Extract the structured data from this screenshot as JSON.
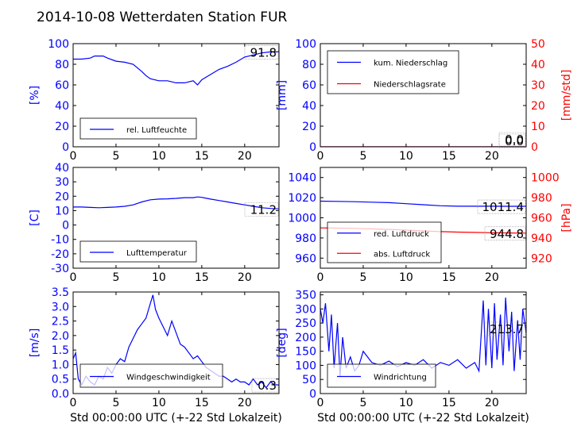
{
  "title": "2014-10-08 Wetterdaten Station FUR",
  "colors": {
    "primary": "#0000ff",
    "secondary": "#ff0000",
    "axis": "#000000"
  },
  "chart_data": [
    {
      "type": "line",
      "ylabel": "[%]",
      "xlim": [
        0,
        24
      ],
      "ylim": [
        0,
        100
      ],
      "xticks": [
        0,
        5,
        10,
        15,
        20
      ],
      "yticks": [
        0,
        20,
        40,
        60,
        80,
        100
      ],
      "legend": [
        "rel. Luftfeuchte"
      ],
      "legend_position": "lower-left",
      "value_label": "91.8",
      "series": [
        {
          "name": "rel. Luftfeuchte",
          "color": "#0000ff",
          "x": [
            0,
            1,
            2,
            2.5,
            3.5,
            4,
            5,
            6,
            7,
            8,
            8.5,
            9,
            10,
            11,
            12,
            13,
            14,
            14.5,
            15,
            16,
            17,
            18,
            19,
            20,
            21,
            22,
            23,
            24
          ],
          "y": [
            85,
            85,
            86,
            88,
            88,
            86,
            83,
            82,
            80,
            73,
            69,
            66,
            64,
            64,
            62,
            62,
            64,
            60,
            65,
            70,
            75,
            78,
            82,
            87,
            89,
            91,
            92,
            92
          ]
        }
      ]
    },
    {
      "type": "line",
      "ylabel": "[mm]",
      "ylabel_right": "[mm/std]",
      "xlim": [
        0,
        24
      ],
      "ylim": [
        0,
        100
      ],
      "ylim_right": [
        0,
        50
      ],
      "xticks": [
        0,
        5,
        10,
        15,
        20
      ],
      "yticks": [
        0,
        20,
        40,
        60,
        80,
        100
      ],
      "yticks_right": [
        0,
        10,
        20,
        30,
        40,
        50
      ],
      "legend": [
        "kum. Niederschlag",
        "Niederschlagsrate"
      ],
      "legend_position": "upper-left",
      "value_label": "0.0",
      "value_label_right": "0.0",
      "series": [
        {
          "name": "kum. Niederschlag",
          "color": "#0000ff",
          "axis": "left",
          "x": [
            0,
            24
          ],
          "y": [
            0,
            0
          ]
        },
        {
          "name": "Niederschlagsrate",
          "color": "#ff0000",
          "axis": "right",
          "x": [
            0,
            24
          ],
          "y": [
            0,
            0
          ]
        }
      ]
    },
    {
      "type": "line",
      "ylabel": "[C]",
      "xlim": [
        0,
        24
      ],
      "ylim": [
        -30,
        40
      ],
      "xticks": [
        0,
        5,
        10,
        15,
        20
      ],
      "yticks": [
        -30,
        -20,
        -10,
        0,
        10,
        20,
        30,
        40
      ],
      "legend": [
        "Lufttemperatur"
      ],
      "legend_position": "lower-left",
      "value_label": "11.2",
      "series": [
        {
          "name": "Lufttemperatur",
          "color": "#0000ff",
          "x": [
            0,
            1,
            2,
            3,
            4,
            5,
            6,
            7,
            8,
            9,
            10,
            11,
            12,
            13,
            14,
            14.5,
            15,
            16,
            17,
            18,
            19,
            20,
            21,
            22,
            23,
            24
          ],
          "y": [
            12.5,
            12.5,
            12.2,
            12,
            12.2,
            12.5,
            13,
            14,
            16,
            17.5,
            18,
            18.2,
            18.5,
            19,
            19,
            19.5,
            19.2,
            18,
            17,
            16,
            15,
            14,
            13,
            12,
            11.5,
            11.2
          ]
        }
      ]
    },
    {
      "type": "line",
      "ylabel_right": "[hPa]",
      "xlim": [
        0,
        24
      ],
      "ylim": [
        950,
        1050
      ],
      "ylim_right": [
        910,
        1010
      ],
      "xticks": [
        0,
        5,
        10,
        15,
        20
      ],
      "yticks": [
        960,
        980,
        1000,
        1020,
        1040
      ],
      "yticks_right": [
        920,
        940,
        960,
        980,
        1000
      ],
      "legend": [
        "red. Luftdruck",
        "abs. Luftdruck"
      ],
      "legend_position": "lower-left",
      "value_label": "1011.4",
      "value_label_right": "944.8",
      "series": [
        {
          "name": "red. Luftdruck",
          "color": "#0000ff",
          "axis": "left",
          "x": [
            0,
            2,
            4,
            6,
            8,
            10,
            12,
            14,
            16,
            18,
            20,
            22,
            24
          ],
          "y": [
            1016.5,
            1016.3,
            1016,
            1015.5,
            1015,
            1014,
            1013,
            1012,
            1011.5,
            1011.5,
            1011.5,
            1011.4,
            1011.4
          ]
        },
        {
          "name": "abs. Luftdruck",
          "color": "#ff0000",
          "axis": "right",
          "x": [
            0,
            2,
            4,
            6,
            8,
            10,
            12,
            14,
            16,
            18,
            20,
            22,
            24
          ],
          "y": [
            950,
            949.8,
            949.5,
            949,
            948.5,
            947.8,
            947,
            946.3,
            945.8,
            945.5,
            945.2,
            945,
            944.8
          ]
        }
      ]
    },
    {
      "type": "line",
      "ylabel": "[m/s]",
      "xlabel": "Std 00:00:00 UTC (+-22 Std Lokalzeit)",
      "xlim": [
        0,
        24
      ],
      "ylim": [
        0,
        3.5
      ],
      "xticks": [
        0,
        5,
        10,
        15,
        20
      ],
      "yticks": [
        0.0,
        0.5,
        1.0,
        1.5,
        2.0,
        2.5,
        3.0,
        3.5
      ],
      "legend": [
        "Windgeschwindigkeit"
      ],
      "legend_position": "lower-left",
      "value_label": "0.3",
      "series": [
        {
          "name": "Windgeschwindigkeit",
          "color": "#0000ff",
          "x": [
            0,
            0.3,
            0.6,
            1,
            1.5,
            2,
            2.5,
            3,
            3.5,
            4,
            4.5,
            5,
            5.5,
            6,
            6.5,
            7,
            7.5,
            8,
            8.5,
            9,
            9.3,
            9.6,
            10,
            10.5,
            11,
            11.5,
            12,
            12.5,
            13,
            13.5,
            14,
            14.5,
            15,
            15.5,
            16,
            16.5,
            17,
            17.5,
            18,
            18.5,
            19,
            19.5,
            20,
            20.5,
            21,
            21.5,
            22,
            22.5,
            23,
            23.5,
            24
          ],
          "y": [
            1.2,
            1.4,
            0.5,
            0.3,
            0.6,
            0.4,
            0.3,
            0.6,
            0.5,
            0.9,
            0.7,
            1.0,
            1.2,
            1.1,
            1.6,
            1.9,
            2.2,
            2.4,
            2.6,
            3.1,
            3.4,
            2.9,
            2.6,
            2.3,
            2.0,
            2.5,
            2.1,
            1.7,
            1.6,
            1.4,
            1.2,
            1.3,
            1.1,
            0.9,
            0.8,
            0.7,
            0.6,
            0.6,
            0.5,
            0.4,
            0.5,
            0.4,
            0.4,
            0.3,
            0.5,
            0.3,
            0.4,
            0.2,
            0.4,
            0.3,
            0.3
          ]
        }
      ]
    },
    {
      "type": "line",
      "ylabel": "[deg]",
      "xlabel": "Std 00:00:00 UTC (+-22 Std Lokalzeit)",
      "xlim": [
        0,
        24
      ],
      "ylim": [
        0,
        360
      ],
      "xticks": [
        0,
        5,
        10,
        15,
        20
      ],
      "yticks": [
        0,
        50,
        100,
        150,
        200,
        250,
        300,
        350
      ],
      "legend": [
        "Windrichtung"
      ],
      "legend_position": "lower-left",
      "value_label": "213.7",
      "series": [
        {
          "name": "Windrichtung",
          "color": "#0000ff",
          "x": [
            0,
            0.3,
            0.6,
            1,
            1.3,
            1.6,
            2,
            2.3,
            2.6,
            3,
            3.5,
            4,
            4.5,
            5,
            6,
            7,
            8,
            9,
            10,
            11,
            12,
            13,
            14,
            15,
            16,
            17,
            18,
            18.5,
            19,
            19.3,
            19.6,
            20,
            20.3,
            20.6,
            21,
            21.3,
            21.6,
            22,
            22.3,
            22.6,
            23,
            23.3,
            23.6,
            24
          ],
          "y": [
            300,
            250,
            320,
            150,
            280,
            90,
            250,
            60,
            200,
            90,
            130,
            80,
            100,
            150,
            110,
            100,
            115,
            95,
            110,
            100,
            120,
            90,
            110,
            100,
            120,
            90,
            110,
            80,
            330,
            100,
            300,
            90,
            320,
            120,
            280,
            100,
            340,
            150,
            290,
            80,
            260,
            120,
            300,
            214
          ]
        }
      ]
    }
  ]
}
